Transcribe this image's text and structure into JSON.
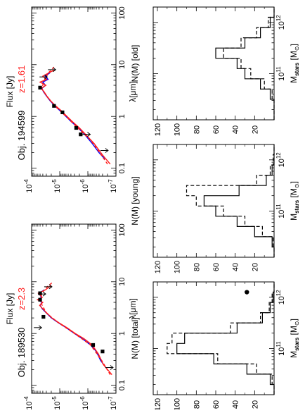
{
  "chart_data": [
    {
      "type": "line",
      "panel": "sed",
      "object": "Obj. 194599",
      "redshift_label": "z=1.61",
      "xlabel": "λ[μm]",
      "ylabel": "Flux [Jy]",
      "xscale": "log",
      "yscale": "log",
      "xlim": [
        0.07,
        130
      ],
      "ylim": [
        1e-07,
        0.0001
      ],
      "x_ticks": [
        "0.1",
        "1",
        "10",
        "100"
      ],
      "y_ticks": [
        "10-4",
        "10-5",
        "10-6",
        "10-7"
      ],
      "series": [],
      "lines": [
        {
          "color": "#0000ff",
          "dash": "solid",
          "x": [
            0.15,
            0.2,
            0.3,
            0.45,
            0.6,
            0.8,
            1.0,
            1.3,
            1.6,
            2.0,
            2.5,
            3.0,
            3.5,
            4.0,
            4.6,
            5.2,
            6.0,
            7.0
          ],
          "y": [
            2.5e-07,
            4e-07,
            7e-07,
            1.3e-06,
            2.2e-06,
            4e-06,
            6e-06,
            1e-05,
            1.5e-05,
            2.2e-05,
            3e-05,
            3.8e-05,
            4.3e-05,
            3.2e-05,
            4e-05,
            2.6e-05,
            3.3e-05,
            2.2e-05
          ]
        },
        {
          "color": "#ff1a1a",
          "dash": "solid",
          "x": [
            0.12,
            0.18,
            0.3,
            0.45,
            0.6,
            0.8,
            1.0,
            1.3,
            1.6,
            2.0,
            2.5,
            3.0,
            3.5,
            4.0,
            4.6,
            5.2,
            6.0,
            7.0,
            8.0
          ],
          "y": [
            1.6e-07,
            3e-07,
            6e-07,
            1.2e-06,
            2e-06,
            3.6e-06,
            5.5e-06,
            9e-06,
            1.4e-05,
            2.1e-05,
            2.9e-05,
            3.6e-05,
            4.6e-05,
            3.1e-05,
            5e-05,
            2.9e-05,
            4e-05,
            2.4e-05,
            1.5e-05
          ]
        },
        {
          "color": "#ff1a1a",
          "dash": "dashed",
          "x": [
            0.12,
            0.2,
            0.35,
            0.6,
            1.0,
            1.6,
            2.5,
            3.5,
            5.0,
            7.0,
            9.0
          ],
          "y": [
            2e-07,
            3.8e-07,
            8e-07,
            2.3e-06,
            6e-06,
            1.5e-05,
            3e-05,
            4.4e-05,
            3.5e-05,
            2.5e-05,
            1.6e-05
          ]
        }
      ],
      "points": [
        {
          "x": 0.45,
          "y": 1.8e-06,
          "marker": "square"
        },
        {
          "x": 0.6,
          "y": 2.6e-06,
          "marker": "square"
        },
        {
          "x": 1.2,
          "y": 8e-06,
          "marker": "square"
        },
        {
          "x": 1.6,
          "y": 1.6e-05,
          "marker": "square"
        },
        {
          "x": 3.6,
          "y": 5e-05,
          "marker": "square"
        }
      ],
      "upper_limits": [
        {
          "x": 0.22,
          "y": 3e-07
        },
        {
          "x": 0.45,
          "y": 1.3e-06
        },
        {
          "x": 5.8,
          "y": 4.4e-05
        },
        {
          "x": 8.0,
          "y": 2.2e-05
        }
      ]
    },
    {
      "type": "line",
      "panel": "sed",
      "object": "Obj. 189530",
      "redshift_label": "z=2.3",
      "xlabel": "λ[μm]",
      "ylabel": "Flux [Jy]",
      "xscale": "log",
      "yscale": "log",
      "xlim": [
        0.07,
        130
      ],
      "ylim": [
        1e-07,
        0.0001
      ],
      "x_ticks": [
        "0.1",
        "1",
        "10",
        "100"
      ],
      "y_ticks": [
        "10-4",
        "10-5",
        "10-6",
        "10-7"
      ],
      "series": [],
      "lines": [
        {
          "color": "#0000ff",
          "dash": "solid",
          "x": [
            0.2,
            0.3,
            0.45,
            0.6,
            0.8,
            1.0,
            1.3,
            1.6,
            2.0,
            2.5,
            3.0,
            3.5,
            4.0,
            4.5,
            5.0,
            6.0,
            7.0
          ],
          "y": [
            2e-07,
            3.5e-07,
            5e-07,
            8e-07,
            1.6e-06,
            3e-06,
            6e-06,
            1.1e-05,
            2e-05,
            3e-05,
            4.2e-05,
            5e-05,
            4.3e-05,
            6e-05,
            4.5e-05,
            5.5e-05,
            3.5e-05
          ]
        },
        {
          "color": "#ff1a1a",
          "dash": "solid",
          "x": [
            0.16,
            0.25,
            0.4,
            0.6,
            0.8,
            1.0,
            1.3,
            1.6,
            2.0,
            2.5,
            3.0,
            3.5,
            4.0,
            4.5,
            5.0,
            6.0,
            7.0,
            8.5
          ],
          "y": [
            1.4e-07,
            2.8e-07,
            4.2e-07,
            7e-07,
            1.4e-06,
            2.8e-06,
            5.6e-06,
            1.05e-05,
            1.9e-05,
            2.9e-05,
            4e-05,
            5.2e-05,
            4e-05,
            6.2e-05,
            4.2e-05,
            5.8e-05,
            3.2e-05,
            2e-05
          ]
        },
        {
          "color": "#ff1a1a",
          "dash": "dashed",
          "x": [
            0.16,
            0.3,
            0.6,
            1.0,
            1.6,
            2.5,
            4.0,
            6.0,
            8.0,
            10.0
          ],
          "y": [
            1.6e-07,
            3.2e-07,
            8e-07,
            3e-06,
            1.1e-05,
            3e-05,
            4.8e-05,
            4.4e-05,
            2.8e-05,
            1.7e-05
          ]
        }
      ],
      "points": [
        {
          "x": 0.45,
          "y": 3e-07,
          "marker": "square"
        },
        {
          "x": 0.6,
          "y": 6.5e-07,
          "marker": "square"
        },
        {
          "x": 2.1,
          "y": 3.8e-05,
          "marker": "square"
        },
        {
          "x": 4.5,
          "y": 5e-05,
          "marker": "square"
        },
        {
          "x": 6.0,
          "y": 5e-05,
          "marker": "square"
        }
      ],
      "upper_limits": [
        {
          "x": 0.22,
          "y": 2e-07
        },
        {
          "x": 1.3,
          "y": 7e-05
        },
        {
          "x": 5.8,
          "y": 5e-05
        },
        {
          "x": 8.0,
          "y": 3e-05
        }
      ]
    },
    {
      "type": "bar",
      "panel": "histogram",
      "xlabel": "M_stars [M_⊙]",
      "ylabel": "N(M) [total]",
      "x_ticks": [
        "10^11",
        "10^12"
      ],
      "y_ticks": [
        "20",
        "40",
        "60",
        "80",
        "100",
        "120"
      ],
      "ylim": [
        0,
        120
      ],
      "bin_edges_log": [
        10.1,
        10.3,
        10.5,
        10.7,
        10.9,
        11.1,
        11.3,
        11.5,
        11.7,
        11.9,
        12.1,
        12.3
      ],
      "series": [
        {
          "dash": "solid",
          "values": [
            0,
            4,
            28,
            62,
            100,
            92,
            38,
            12,
            4,
            1,
            0
          ]
        },
        {
          "dash": "dashed",
          "values": [
            0,
            2,
            18,
            58,
            110,
            105,
            45,
            14,
            5,
            2,
            0
          ]
        }
      ],
      "points": [
        {
          "x_log": 12.1,
          "y": 28,
          "marker": "circle"
        }
      ]
    },
    {
      "type": "bar",
      "panel": "histogram",
      "xlabel": "M_stars [M_⊙]",
      "ylabel": "N(M) [young]",
      "x_ticks": [
        "10^11",
        "10^12"
      ],
      "y_ticks": [
        "20",
        "40",
        "60",
        "80",
        "100",
        "120"
      ],
      "ylim": [
        0,
        120
      ],
      "bin_edges_log": [
        10.1,
        10.3,
        10.5,
        10.7,
        10.9,
        11.1,
        11.3,
        11.5,
        11.7,
        11.9,
        12.1,
        12.3
      ],
      "series": [
        {
          "dash": "solid",
          "values": [
            0,
            2,
            20,
            38,
            60,
            72,
            36,
            8,
            2,
            0,
            0
          ]
        },
        {
          "dash": "dashed",
          "values": [
            0,
            1,
            12,
            30,
            52,
            80,
            90,
            18,
            4,
            1,
            0
          ]
        }
      ]
    },
    {
      "type": "bar",
      "panel": "histogram",
      "xlabel": "M_stars [M_⊙]",
      "ylabel": "N(M) [old]",
      "x_ticks": [
        "10^11",
        "10^12"
      ],
      "y_ticks": [
        "20",
        "40",
        "60",
        "80",
        "100",
        "120"
      ],
      "ylim": [
        0,
        120
      ],
      "bin_edges_log": [
        10.1,
        10.3,
        10.5,
        10.7,
        10.9,
        11.1,
        11.3,
        11.5,
        11.7,
        11.9,
        12.1,
        12.3
      ],
      "series": [
        {
          "dash": "solid",
          "values": [
            0,
            0,
            4,
            14,
            30,
            38,
            60,
            30,
            14,
            4,
            0
          ]
        },
        {
          "dash": "dashed",
          "values": [
            0,
            0,
            2,
            10,
            24,
            34,
            52,
            34,
            18,
            6,
            0
          ]
        }
      ]
    }
  ]
}
